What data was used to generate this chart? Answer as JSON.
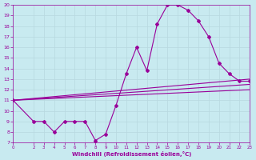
{
  "bg_color": "#c8eaf0",
  "grid_color": "#b8d8e0",
  "line_color": "#990099",
  "marker_color": "#990099",
  "xlabel": "Windchill (Refroidissement éolien,°C)",
  "xlim": [
    0,
    23
  ],
  "ylim": [
    7,
    20
  ],
  "xticks": [
    0,
    2,
    3,
    4,
    5,
    6,
    7,
    8,
    9,
    10,
    11,
    12,
    13,
    14,
    15,
    16,
    17,
    18,
    19,
    20,
    21,
    22,
    23
  ],
  "yticks": [
    7,
    8,
    9,
    10,
    11,
    12,
    13,
    14,
    15,
    16,
    17,
    18,
    19,
    20
  ],
  "series": [
    {
      "x": [
        0,
        2,
        3,
        4,
        5,
        6,
        7,
        8,
        9,
        10,
        11,
        12,
        13,
        14,
        15,
        16,
        17,
        18,
        19,
        20,
        21,
        22,
        23
      ],
      "y": [
        11,
        9,
        9,
        8,
        9,
        9,
        9,
        7.2,
        7.8,
        10.5,
        13.5,
        16,
        13.8,
        18.2,
        20,
        20,
        19.5,
        18.5,
        17,
        14.5,
        13.5,
        12.8,
        12.8
      ],
      "has_markers": true
    },
    {
      "x": [
        0,
        23
      ],
      "y": [
        11,
        13
      ],
      "has_markers": false
    },
    {
      "x": [
        0,
        23
      ],
      "y": [
        11,
        12.5
      ],
      "has_markers": false
    },
    {
      "x": [
        0,
        23
      ],
      "y": [
        11,
        12
      ],
      "has_markers": false
    }
  ]
}
